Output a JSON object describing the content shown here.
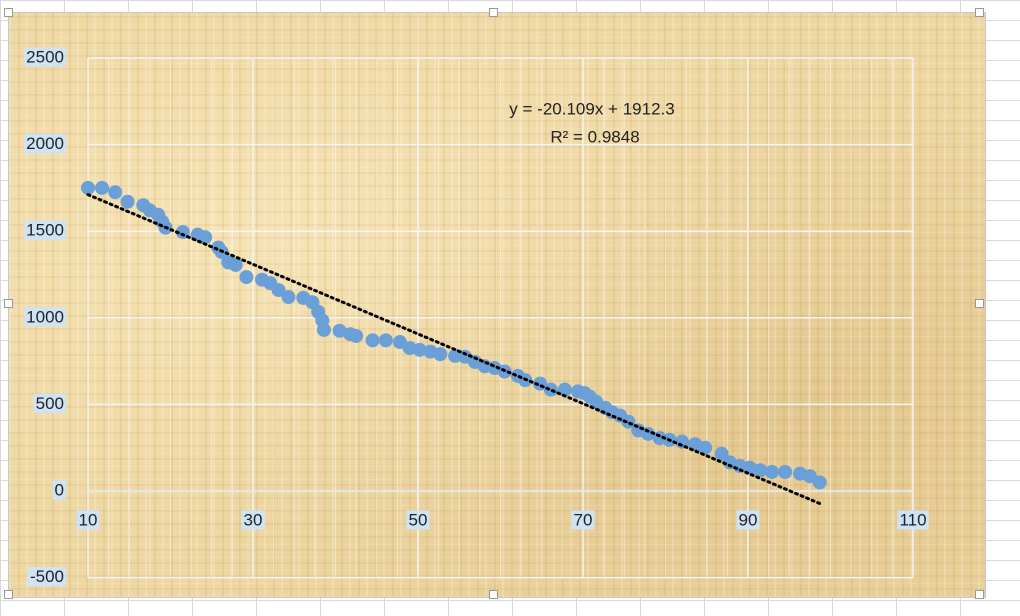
{
  "chart_data": {
    "type": "scatter",
    "x": [
      10,
      11.7,
      13.3,
      14.8,
      16.7,
      17.5,
      18.5,
      19.0,
      19.4,
      21.5,
      23.3,
      24.2,
      25.8,
      26.2,
      27.0,
      27.9,
      29.2,
      31.1,
      32.1,
      33.1,
      34.3,
      36.1,
      37.2,
      37.9,
      38.4,
      38.6,
      40.5,
      41.8,
      42.5,
      44.5,
      46.1,
      47.8,
      49.0,
      50.2,
      51.5,
      52.7,
      54.5,
      55.7,
      56.9,
      58.1,
      59.3,
      60.5,
      62.1,
      63.0,
      64.8,
      66.1,
      67.8,
      69.4,
      70.2,
      70.8,
      71.6,
      72.7,
      73.5,
      74.5,
      75.5,
      76.7,
      77.9,
      79.3,
      80.5,
      82.0,
      83.6,
      84.8,
      86.8,
      87.8,
      89.0,
      90.2,
      91.5,
      92.9,
      94.5,
      96.3,
      97.5,
      98.7
    ],
    "values": [
      1750,
      1750,
      1725,
      1670,
      1650,
      1620,
      1595,
      1555,
      1520,
      1495,
      1480,
      1465,
      1405,
      1380,
      1320,
      1305,
      1235,
      1220,
      1200,
      1160,
      1120,
      1115,
      1090,
      1035,
      985,
      930,
      925,
      905,
      895,
      870,
      870,
      860,
      825,
      815,
      805,
      790,
      780,
      775,
      745,
      720,
      710,
      690,
      665,
      640,
      620,
      585,
      585,
      575,
      565,
      545,
      515,
      480,
      455,
      435,
      400,
      350,
      330,
      305,
      295,
      285,
      270,
      250,
      215,
      165,
      145,
      135,
      120,
      110,
      110,
      100,
      85,
      50
    ],
    "color": "#6a9fd8",
    "trendline": {
      "slope": -20.109,
      "intercept": 1912.3,
      "x": [
        10,
        98.7
      ],
      "color": "#000000",
      "equation": "y = -20.109x + 1912.3",
      "r_squared": "R² = 0.9848"
    },
    "xlim": [
      10,
      110
    ],
    "xticks": [
      10,
      30,
      50,
      70,
      90,
      110
    ],
    "ylim": [
      -500,
      2500
    ],
    "yticks": [
      -500,
      0,
      500,
      1000,
      1500,
      2000,
      2500
    ],
    "grid": true
  }
}
